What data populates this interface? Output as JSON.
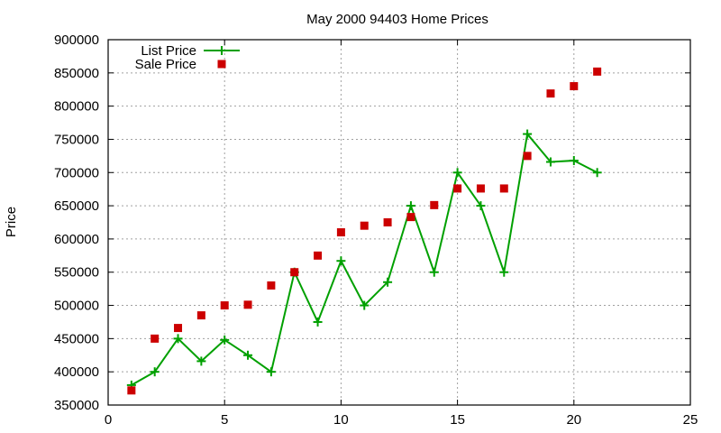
{
  "chart_data": {
    "type": "line",
    "title": "May 2000 94403 Home Prices",
    "xlabel": "",
    "ylabel": "Price",
    "xlim": [
      0,
      25
    ],
    "ylim": [
      350000,
      900000
    ],
    "xticks": [
      0,
      5,
      10,
      15,
      20,
      25
    ],
    "yticks": [
      350000,
      400000,
      450000,
      500000,
      550000,
      600000,
      650000,
      700000,
      750000,
      800000,
      850000,
      900000
    ],
    "grid": true,
    "legend_position": "top-left",
    "x": [
      1,
      2,
      3,
      4,
      5,
      6,
      7,
      8,
      9,
      10,
      11,
      12,
      13,
      14,
      15,
      16,
      17,
      18,
      19,
      20,
      21
    ],
    "series": [
      {
        "name": "List Price",
        "style": "linespoints",
        "marker": "plus",
        "color": "#00a000",
        "values": [
          380000,
          400000,
          450000,
          416000,
          448000,
          425000,
          400000,
          550000,
          475000,
          567000,
          500000,
          535000,
          650000,
          550000,
          700000,
          650000,
          550000,
          758000,
          716000,
          718000,
          700000
        ]
      },
      {
        "name": "Sale Price",
        "style": "points",
        "marker": "filled-square",
        "color": "#cc0000",
        "values": [
          372000,
          450000,
          466000,
          485000,
          500000,
          501000,
          530000,
          550000,
          575000,
          610000,
          620000,
          625000,
          633000,
          651000,
          676000,
          676000,
          676000,
          725000,
          819000,
          830000,
          852000
        ]
      }
    ]
  }
}
